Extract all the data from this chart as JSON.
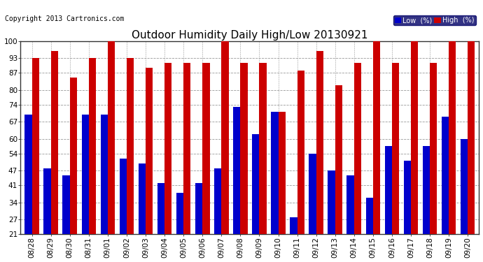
{
  "title": "Outdoor Humidity Daily High/Low 20130921",
  "copyright": "Copyright 2013 Cartronics.com",
  "dates": [
    "08/28",
    "08/29",
    "08/30",
    "08/31",
    "09/01",
    "09/02",
    "09/03",
    "09/04",
    "09/05",
    "09/06",
    "09/07",
    "09/08",
    "09/09",
    "09/10",
    "09/11",
    "09/12",
    "09/13",
    "09/14",
    "09/15",
    "09/16",
    "09/17",
    "09/18",
    "09/19",
    "09/20"
  ],
  "high": [
    93,
    96,
    85,
    93,
    100,
    93,
    89,
    91,
    91,
    91,
    100,
    91,
    91,
    71,
    88,
    96,
    82,
    91,
    100,
    91,
    100,
    91,
    100,
    100
  ],
  "low": [
    70,
    48,
    45,
    70,
    70,
    52,
    50,
    42,
    38,
    42,
    48,
    73,
    62,
    71,
    28,
    54,
    47,
    45,
    36,
    57,
    51,
    57,
    69,
    60
  ],
  "ylim_min": 21,
  "ylim_max": 100,
  "yticks": [
    21,
    27,
    34,
    41,
    47,
    54,
    60,
    67,
    74,
    80,
    87,
    93,
    100
  ],
  "bar_width": 0.38,
  "low_color": "#0000cc",
  "high_color": "#cc0000",
  "bg_color": "#ffffff",
  "plot_bg_color": "#ffffff",
  "outer_bg_color": "#cccccc",
  "grid_color": "#999999",
  "title_fontsize": 11,
  "tick_fontsize": 7.5,
  "copyright_fontsize": 7
}
